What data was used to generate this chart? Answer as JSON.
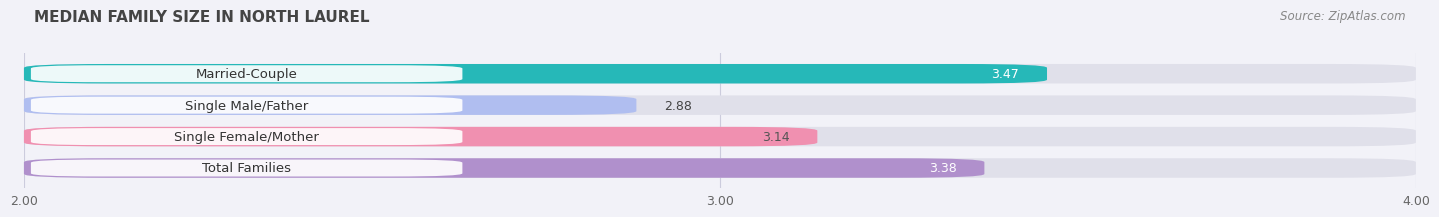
{
  "title": "MEDIAN FAMILY SIZE IN NORTH LAUREL",
  "source": "Source: ZipAtlas.com",
  "categories": [
    "Married-Couple",
    "Single Male/Father",
    "Single Female/Mother",
    "Total Families"
  ],
  "values": [
    3.47,
    2.88,
    3.14,
    3.38
  ],
  "bar_colors": [
    "#26b8b8",
    "#b0bef0",
    "#f090b0",
    "#b090cc"
  ],
  "value_label_colors": [
    "white",
    "#555555",
    "#555555",
    "white"
  ],
  "x_min": 2.0,
  "x_max": 4.0,
  "x_ticks": [
    2.0,
    3.0,
    4.0
  ],
  "x_tick_labels": [
    "2.00",
    "3.00",
    "4.00"
  ],
  "title_fontsize": 11,
  "source_fontsize": 8.5,
  "bar_label_fontsize": 9,
  "category_fontsize": 9.5,
  "bg_color": "#f2f2f8",
  "bar_bg_color": "#e0e0ea",
  "grid_color": "#ccccdd"
}
